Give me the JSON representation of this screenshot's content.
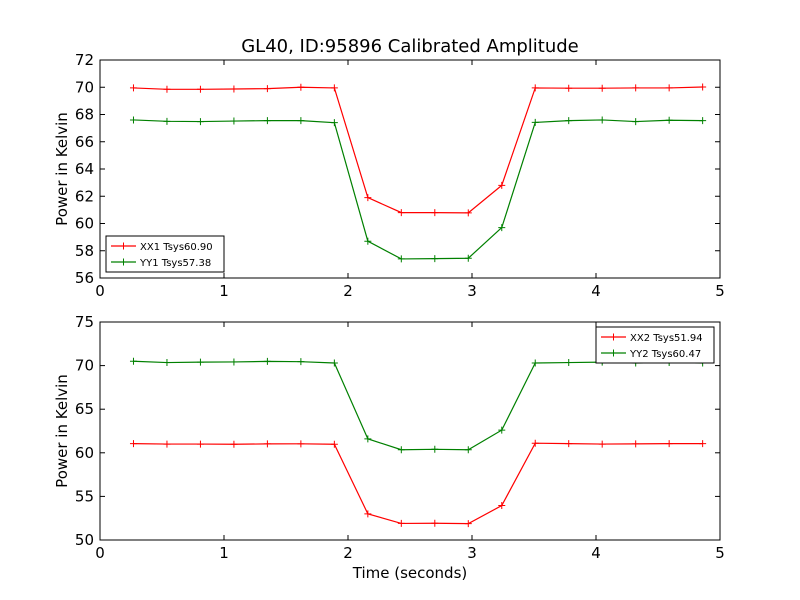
{
  "figure": {
    "title": "GL40, ID:95896 Calibrated Amplitude"
  },
  "chart_data": [
    {
      "type": "line",
      "title": "GL40, ID:95896 Calibrated Amplitude",
      "xlabel": "",
      "ylabel": "Power in Kelvin",
      "xlim": [
        0,
        5
      ],
      "ylim": [
        56,
        72
      ],
      "xticks": [
        0,
        1,
        2,
        3,
        4,
        5
      ],
      "yticks": [
        56,
        58,
        60,
        62,
        64,
        66,
        68,
        70,
        72
      ],
      "grid": false,
      "legend_position": "lower-left",
      "x": [
        0.27,
        0.54,
        0.81,
        1.08,
        1.35,
        1.62,
        1.89,
        2.16,
        2.43,
        2.7,
        2.97,
        3.24,
        3.51,
        3.78,
        4.05,
        4.32,
        4.59,
        4.86
      ],
      "series": [
        {
          "name": "XX1 Tsys60.90",
          "color": "#ff0000",
          "values": [
            69.95,
            69.85,
            69.85,
            69.87,
            69.9,
            70.0,
            69.95,
            61.9,
            60.8,
            60.8,
            60.78,
            62.8,
            69.95,
            69.93,
            69.93,
            69.95,
            69.95,
            70.02
          ]
        },
        {
          "name": "YY1 Tsys57.38",
          "color": "#008000",
          "values": [
            67.6,
            67.5,
            67.48,
            67.52,
            67.55,
            67.55,
            67.4,
            58.7,
            57.4,
            57.42,
            57.45,
            59.7,
            67.42,
            67.55,
            67.6,
            67.48,
            67.58,
            67.55
          ]
        }
      ]
    },
    {
      "type": "line",
      "title": "",
      "xlabel": "Time (seconds)",
      "ylabel": "Power in Kelvin",
      "xlim": [
        0,
        5
      ],
      "ylim": [
        50,
        75
      ],
      "xticks": [
        0,
        1,
        2,
        3,
        4,
        5
      ],
      "yticks": [
        50,
        55,
        60,
        65,
        70,
        75
      ],
      "grid": false,
      "legend_position": "top-right",
      "x": [
        0.27,
        0.54,
        0.81,
        1.08,
        1.35,
        1.62,
        1.89,
        2.16,
        2.43,
        2.7,
        2.97,
        3.24,
        3.51,
        3.78,
        4.05,
        4.32,
        4.59,
        4.86
      ],
      "series": [
        {
          "name": "XX2 Tsys51.94",
          "color": "#ff0000",
          "values": [
            61.05,
            61.0,
            61.0,
            60.98,
            61.02,
            61.03,
            60.98,
            53.0,
            51.9,
            51.92,
            51.88,
            53.95,
            61.1,
            61.05,
            61.0,
            61.02,
            61.05,
            61.05
          ]
        },
        {
          "name": "YY2 Tsys60.47",
          "color": "#008000",
          "values": [
            70.5,
            70.35,
            70.4,
            70.42,
            70.48,
            70.45,
            70.3,
            61.6,
            60.35,
            60.4,
            60.35,
            62.6,
            70.3,
            70.35,
            70.4,
            70.3,
            70.35,
            70.3
          ]
        }
      ]
    }
  ]
}
